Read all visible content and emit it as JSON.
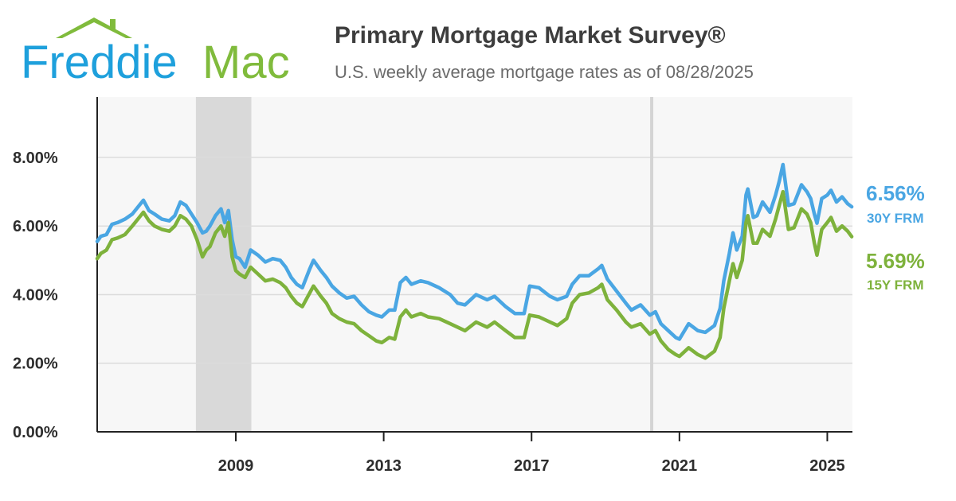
{
  "brand": {
    "word1": "Freddie",
    "word2": "Mac",
    "colors": {
      "blue": "#1ea0dc",
      "green": "#80bb3c"
    }
  },
  "header": {
    "title": "Primary Mortgage Market Survey®",
    "subtitle": "U.S. weekly average mortgage rates as of 08/28/2025"
  },
  "chart_data": {
    "type": "line",
    "title": "Primary Mortgage Market Survey®",
    "subtitle": "U.S. weekly average mortgage rates as of 08/28/2025",
    "xlabel": "",
    "ylabel": "",
    "ylim": [
      0,
      9.76
    ],
    "xlim": [
      2005.25,
      2025.68
    ],
    "grid": true,
    "yticks": [
      {
        "value": 0,
        "label": "0.00%"
      },
      {
        "value": 2,
        "label": "2.00%"
      },
      {
        "value": 4,
        "label": "4.00%"
      },
      {
        "value": 6,
        "label": "6.00%"
      },
      {
        "value": 8,
        "label": "8.00%"
      }
    ],
    "xticks": [
      {
        "value": 2009,
        "label": "2009"
      },
      {
        "value": 2013,
        "label": "2013"
      },
      {
        "value": 2017,
        "label": "2017"
      },
      {
        "value": 2021,
        "label": "2021"
      },
      {
        "value": 2025,
        "label": "2025"
      }
    ],
    "shaded_regions": [
      {
        "start": 2007.92,
        "end": 2009.42,
        "color": "#d9d9d9"
      }
    ],
    "reference_lines": [
      {
        "x": 2020.25,
        "color": "#d4d4d4"
      }
    ],
    "series": [
      {
        "name": "30Y FRM",
        "end_label": "6.56%",
        "color": "#4aa6e3",
        "points": [
          [
            2005.25,
            5.55
          ],
          [
            2005.35,
            5.7
          ],
          [
            2005.5,
            5.75
          ],
          [
            2005.65,
            6.05
          ],
          [
            2005.8,
            6.1
          ],
          [
            2006.0,
            6.2
          ],
          [
            2006.2,
            6.35
          ],
          [
            2006.35,
            6.55
          ],
          [
            2006.5,
            6.75
          ],
          [
            2006.65,
            6.45
          ],
          [
            2006.8,
            6.35
          ],
          [
            2007.0,
            6.2
          ],
          [
            2007.2,
            6.15
          ],
          [
            2007.35,
            6.3
          ],
          [
            2007.5,
            6.7
          ],
          [
            2007.65,
            6.6
          ],
          [
            2007.8,
            6.35
          ],
          [
            2007.95,
            6.1
          ],
          [
            2008.1,
            5.8
          ],
          [
            2008.2,
            5.85
          ],
          [
            2008.3,
            6.0
          ],
          [
            2008.45,
            6.3
          ],
          [
            2008.6,
            6.5
          ],
          [
            2008.7,
            6.1
          ],
          [
            2008.8,
            6.45
          ],
          [
            2008.9,
            5.6
          ],
          [
            2009.0,
            5.1
          ],
          [
            2009.1,
            5.05
          ],
          [
            2009.25,
            4.8
          ],
          [
            2009.4,
            5.3
          ],
          [
            2009.6,
            5.15
          ],
          [
            2009.8,
            4.95
          ],
          [
            2010.0,
            5.05
          ],
          [
            2010.2,
            5.0
          ],
          [
            2010.35,
            4.8
          ],
          [
            2010.5,
            4.5
          ],
          [
            2010.65,
            4.3
          ],
          [
            2010.8,
            4.2
          ],
          [
            2011.0,
            4.75
          ],
          [
            2011.1,
            5.0
          ],
          [
            2011.3,
            4.7
          ],
          [
            2011.45,
            4.5
          ],
          [
            2011.6,
            4.25
          ],
          [
            2011.8,
            4.05
          ],
          [
            2012.0,
            3.9
          ],
          [
            2012.2,
            3.95
          ],
          [
            2012.4,
            3.7
          ],
          [
            2012.6,
            3.5
          ],
          [
            2012.8,
            3.4
          ],
          [
            2012.95,
            3.35
          ],
          [
            2013.15,
            3.55
          ],
          [
            2013.3,
            3.55
          ],
          [
            2013.45,
            4.35
          ],
          [
            2013.6,
            4.5
          ],
          [
            2013.75,
            4.3
          ],
          [
            2014.0,
            4.4
          ],
          [
            2014.2,
            4.35
          ],
          [
            2014.5,
            4.2
          ],
          [
            2014.8,
            4.0
          ],
          [
            2015.0,
            3.75
          ],
          [
            2015.2,
            3.7
          ],
          [
            2015.5,
            4.0
          ],
          [
            2015.8,
            3.85
          ],
          [
            2016.0,
            3.95
          ],
          [
            2016.3,
            3.65
          ],
          [
            2016.55,
            3.45
          ],
          [
            2016.8,
            3.45
          ],
          [
            2016.95,
            4.25
          ],
          [
            2017.2,
            4.2
          ],
          [
            2017.5,
            3.95
          ],
          [
            2017.7,
            3.85
          ],
          [
            2017.95,
            3.95
          ],
          [
            2018.1,
            4.3
          ],
          [
            2018.3,
            4.55
          ],
          [
            2018.55,
            4.55
          ],
          [
            2018.8,
            4.75
          ],
          [
            2018.9,
            4.85
          ],
          [
            2019.05,
            4.45
          ],
          [
            2019.3,
            4.1
          ],
          [
            2019.55,
            3.75
          ],
          [
            2019.7,
            3.55
          ],
          [
            2019.95,
            3.7
          ],
          [
            2020.2,
            3.4
          ],
          [
            2020.35,
            3.5
          ],
          [
            2020.5,
            3.15
          ],
          [
            2020.7,
            2.95
          ],
          [
            2020.9,
            2.75
          ],
          [
            2021.0,
            2.7
          ],
          [
            2021.25,
            3.15
          ],
          [
            2021.5,
            2.95
          ],
          [
            2021.7,
            2.9
          ],
          [
            2021.95,
            3.1
          ],
          [
            2022.1,
            3.6
          ],
          [
            2022.2,
            4.4
          ],
          [
            2022.35,
            5.2
          ],
          [
            2022.45,
            5.8
          ],
          [
            2022.55,
            5.3
          ],
          [
            2022.7,
            5.7
          ],
          [
            2022.8,
            6.9
          ],
          [
            2022.85,
            7.08
          ],
          [
            2023.0,
            6.25
          ],
          [
            2023.1,
            6.3
          ],
          [
            2023.25,
            6.7
          ],
          [
            2023.45,
            6.4
          ],
          [
            2023.6,
            6.9
          ],
          [
            2023.7,
            7.3
          ],
          [
            2023.8,
            7.79
          ],
          [
            2023.95,
            6.6
          ],
          [
            2024.1,
            6.65
          ],
          [
            2024.3,
            7.2
          ],
          [
            2024.45,
            7.0
          ],
          [
            2024.55,
            6.8
          ],
          [
            2024.65,
            6.35
          ],
          [
            2024.72,
            6.08
          ],
          [
            2024.85,
            6.8
          ],
          [
            2025.0,
            6.9
          ],
          [
            2025.1,
            7.04
          ],
          [
            2025.25,
            6.7
          ],
          [
            2025.4,
            6.85
          ],
          [
            2025.55,
            6.65
          ],
          [
            2025.66,
            6.56
          ]
        ]
      },
      {
        "name": "15Y FRM",
        "end_label": "5.69%",
        "color": "#7eb23c",
        "points": [
          [
            2005.25,
            5.05
          ],
          [
            2005.35,
            5.2
          ],
          [
            2005.5,
            5.3
          ],
          [
            2005.65,
            5.6
          ],
          [
            2005.8,
            5.65
          ],
          [
            2006.0,
            5.75
          ],
          [
            2006.2,
            6.0
          ],
          [
            2006.35,
            6.2
          ],
          [
            2006.5,
            6.4
          ],
          [
            2006.65,
            6.15
          ],
          [
            2006.8,
            6.0
          ],
          [
            2007.0,
            5.9
          ],
          [
            2007.2,
            5.85
          ],
          [
            2007.35,
            6.0
          ],
          [
            2007.5,
            6.3
          ],
          [
            2007.65,
            6.2
          ],
          [
            2007.8,
            6.0
          ],
          [
            2007.95,
            5.6
          ],
          [
            2008.1,
            5.1
          ],
          [
            2008.2,
            5.3
          ],
          [
            2008.3,
            5.4
          ],
          [
            2008.45,
            5.8
          ],
          [
            2008.6,
            6.0
          ],
          [
            2008.7,
            5.7
          ],
          [
            2008.8,
            6.1
          ],
          [
            2008.9,
            5.1
          ],
          [
            2009.0,
            4.7
          ],
          [
            2009.1,
            4.6
          ],
          [
            2009.25,
            4.5
          ],
          [
            2009.4,
            4.8
          ],
          [
            2009.6,
            4.6
          ],
          [
            2009.8,
            4.4
          ],
          [
            2010.0,
            4.45
          ],
          [
            2010.2,
            4.35
          ],
          [
            2010.35,
            4.2
          ],
          [
            2010.5,
            3.95
          ],
          [
            2010.65,
            3.75
          ],
          [
            2010.8,
            3.65
          ],
          [
            2011.0,
            4.05
          ],
          [
            2011.1,
            4.25
          ],
          [
            2011.3,
            3.95
          ],
          [
            2011.45,
            3.75
          ],
          [
            2011.6,
            3.45
          ],
          [
            2011.8,
            3.3
          ],
          [
            2012.0,
            3.2
          ],
          [
            2012.2,
            3.15
          ],
          [
            2012.4,
            2.95
          ],
          [
            2012.6,
            2.8
          ],
          [
            2012.8,
            2.65
          ],
          [
            2012.95,
            2.6
          ],
          [
            2013.15,
            2.75
          ],
          [
            2013.3,
            2.7
          ],
          [
            2013.45,
            3.35
          ],
          [
            2013.6,
            3.55
          ],
          [
            2013.75,
            3.35
          ],
          [
            2014.0,
            3.45
          ],
          [
            2014.2,
            3.35
          ],
          [
            2014.5,
            3.3
          ],
          [
            2014.8,
            3.15
          ],
          [
            2015.0,
            3.05
          ],
          [
            2015.2,
            2.95
          ],
          [
            2015.5,
            3.2
          ],
          [
            2015.8,
            3.05
          ],
          [
            2016.0,
            3.2
          ],
          [
            2016.3,
            2.95
          ],
          [
            2016.55,
            2.75
          ],
          [
            2016.8,
            2.75
          ],
          [
            2016.95,
            3.4
          ],
          [
            2017.2,
            3.35
          ],
          [
            2017.5,
            3.2
          ],
          [
            2017.7,
            3.1
          ],
          [
            2017.95,
            3.3
          ],
          [
            2018.1,
            3.75
          ],
          [
            2018.3,
            4.0
          ],
          [
            2018.55,
            4.05
          ],
          [
            2018.8,
            4.2
          ],
          [
            2018.9,
            4.3
          ],
          [
            2019.05,
            3.85
          ],
          [
            2019.3,
            3.55
          ],
          [
            2019.55,
            3.2
          ],
          [
            2019.7,
            3.05
          ],
          [
            2019.95,
            3.15
          ],
          [
            2020.2,
            2.85
          ],
          [
            2020.35,
            2.95
          ],
          [
            2020.5,
            2.65
          ],
          [
            2020.7,
            2.4
          ],
          [
            2020.9,
            2.25
          ],
          [
            2021.0,
            2.2
          ],
          [
            2021.25,
            2.45
          ],
          [
            2021.5,
            2.25
          ],
          [
            2021.7,
            2.15
          ],
          [
            2021.95,
            2.35
          ],
          [
            2022.1,
            2.75
          ],
          [
            2022.2,
            3.6
          ],
          [
            2022.35,
            4.4
          ],
          [
            2022.45,
            4.9
          ],
          [
            2022.55,
            4.5
          ],
          [
            2022.7,
            5.0
          ],
          [
            2022.8,
            6.1
          ],
          [
            2022.85,
            6.3
          ],
          [
            2023.0,
            5.5
          ],
          [
            2023.1,
            5.5
          ],
          [
            2023.25,
            5.9
          ],
          [
            2023.45,
            5.7
          ],
          [
            2023.6,
            6.2
          ],
          [
            2023.7,
            6.6
          ],
          [
            2023.8,
            7.0
          ],
          [
            2023.95,
            5.9
          ],
          [
            2024.1,
            5.95
          ],
          [
            2024.3,
            6.5
          ],
          [
            2024.45,
            6.35
          ],
          [
            2024.55,
            6.1
          ],
          [
            2024.65,
            5.5
          ],
          [
            2024.72,
            5.15
          ],
          [
            2024.85,
            5.9
          ],
          [
            2025.0,
            6.1
          ],
          [
            2025.1,
            6.25
          ],
          [
            2025.25,
            5.85
          ],
          [
            2025.4,
            6.0
          ],
          [
            2025.55,
            5.85
          ],
          [
            2025.66,
            5.69
          ]
        ]
      }
    ]
  }
}
